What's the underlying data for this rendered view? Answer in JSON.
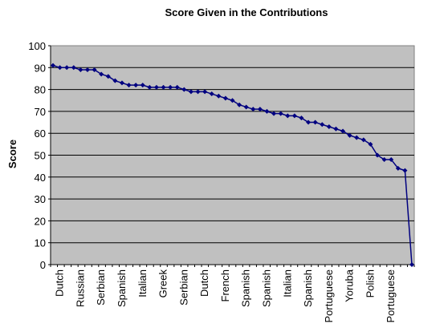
{
  "chart_data": {
    "type": "line",
    "title": "Score Given in the Contributions",
    "xlabel": "",
    "ylabel": "Score",
    "ylim": [
      0,
      100
    ],
    "yticks": [
      0,
      10,
      20,
      30,
      40,
      50,
      60,
      70,
      80,
      90,
      100
    ],
    "grid": true,
    "legend": "none",
    "colors": {
      "plot_background": "#c0c0c0",
      "series": "#000080",
      "grid": "#000000"
    },
    "x_tick_labels": [
      "Dutch",
      "Russian",
      "Serbian",
      "Spanish",
      "Italian",
      "Greek",
      "Serbian",
      "Dutch",
      "French",
      "Spanish",
      "Spanish",
      "Italian",
      "Spanish",
      "Portuguese",
      "Yoruba",
      "Polish",
      "Portuguese"
    ],
    "series": [
      {
        "name": "",
        "values": [
          91,
          90,
          90,
          90,
          89,
          89,
          89,
          87,
          86,
          84,
          83,
          82,
          82,
          82,
          81,
          81,
          81,
          81,
          81,
          80,
          79,
          79,
          79,
          78,
          77,
          76,
          75,
          73,
          72,
          71,
          71,
          70,
          69,
          69,
          68,
          68,
          67,
          65,
          65,
          64,
          63,
          62,
          61,
          59,
          58,
          57,
          55,
          50,
          48,
          48,
          44,
          43,
          0
        ]
      }
    ]
  }
}
